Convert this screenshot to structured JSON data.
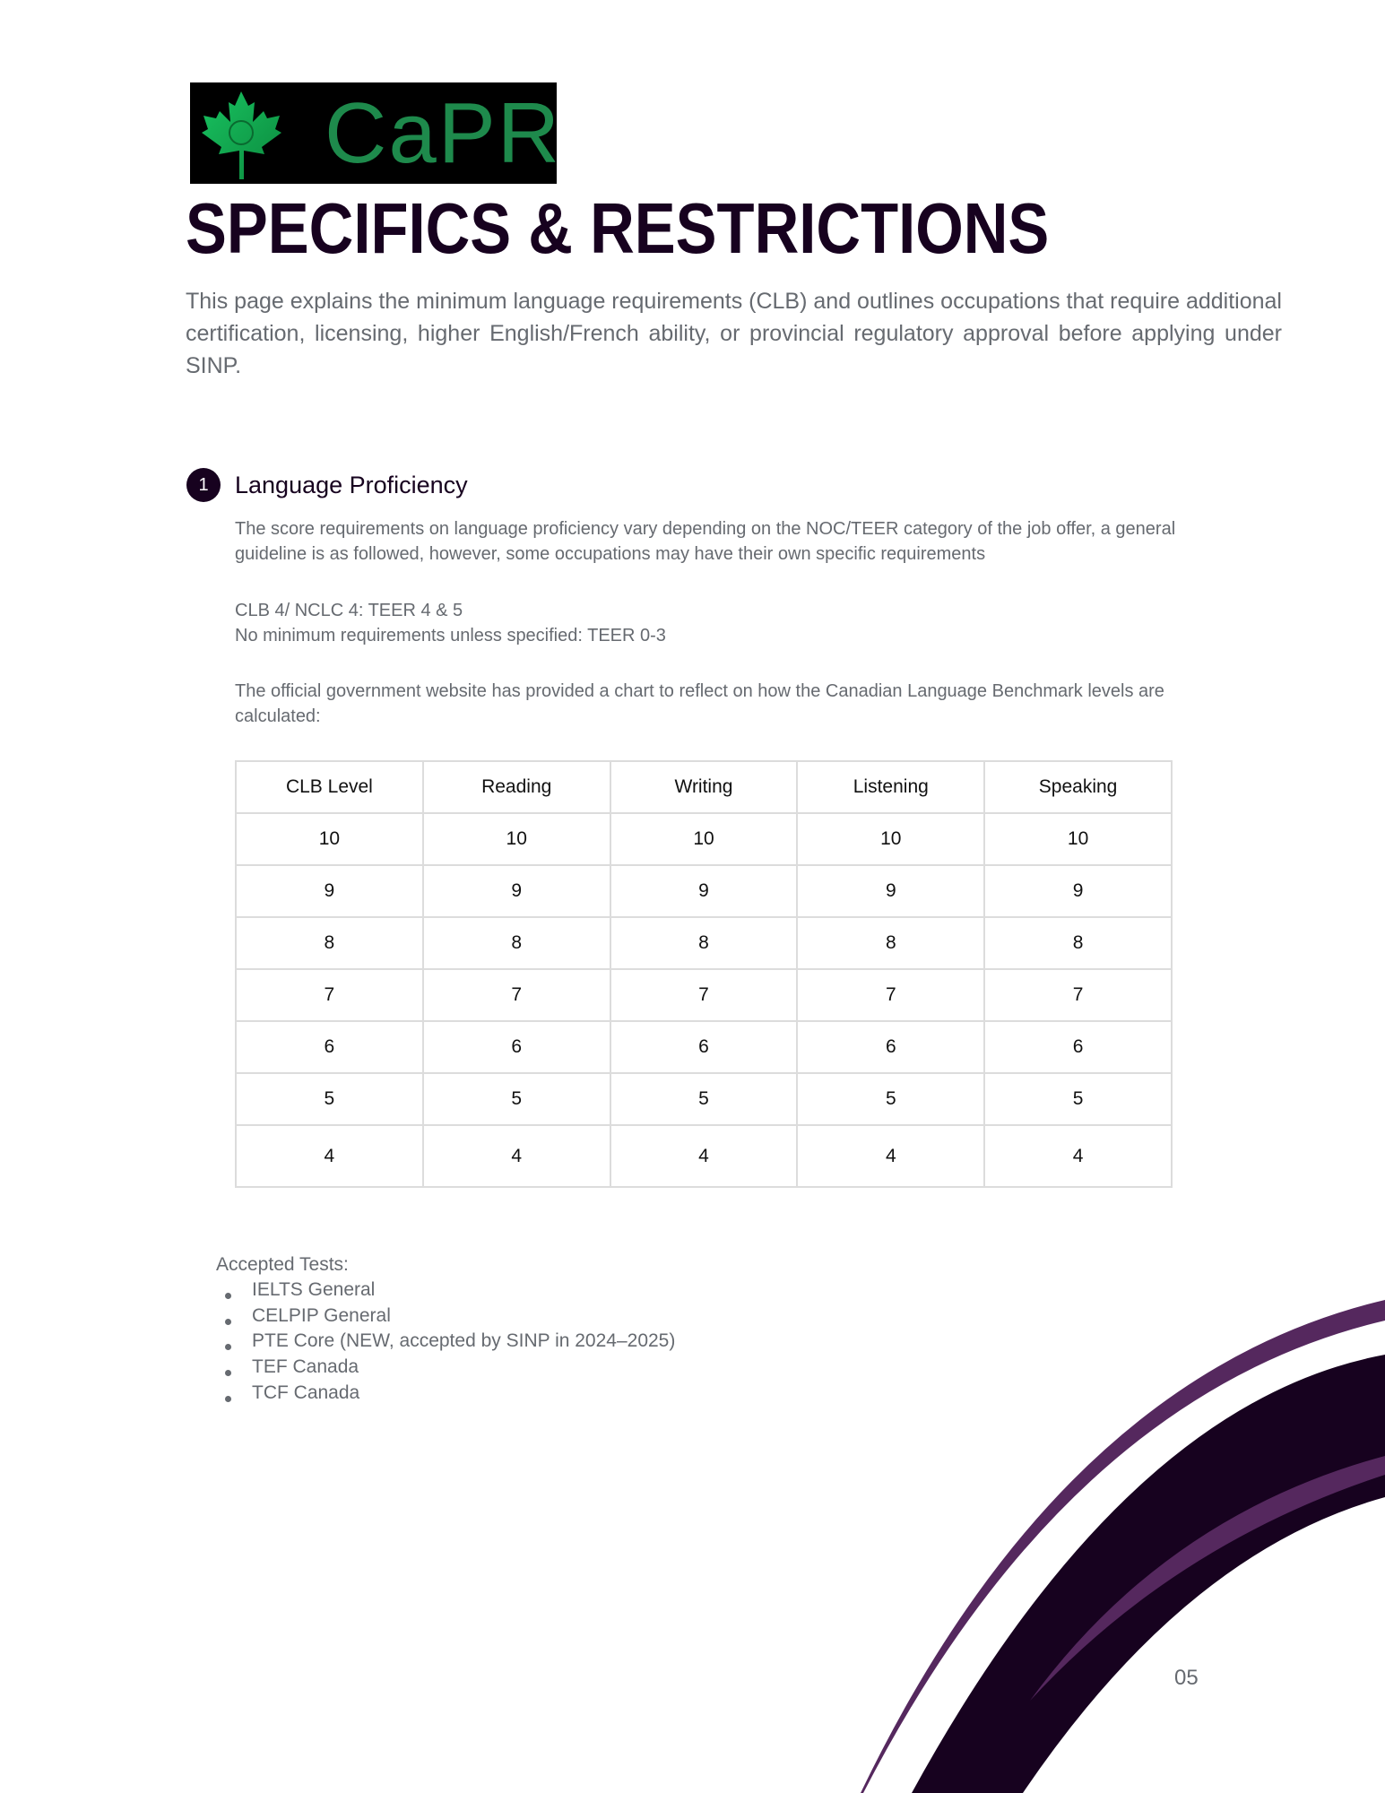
{
  "logo": {
    "text": "CaPR",
    "badge": "PR"
  },
  "page": {
    "title": "SPECIFICS & RESTRICTIONS",
    "intro": "This page explains the minimum language requirements (CLB) and outlines occupations that require additional certification, licensing, higher English/French ability, or provincial regulatory approval before applying under SINP.",
    "page_number": "05"
  },
  "section": {
    "number": "1",
    "title": "Language Proficiency",
    "para1": "The score requirements on language proficiency vary depending on the NOC/TEER category of the job offer, a general guideline is as followed, however, some occupations may have their own specific requirements",
    "line_clb4": "CLB 4/ NCLC 4: TEER 4 & 5",
    "line_nomin": "No minimum requirements unless specified: TEER 0-3",
    "para2": "The official government website has provided a chart to reflect on how the Canadian Language Benchmark levels are calculated:"
  },
  "table": {
    "headers": [
      "CLB Level",
      "Reading",
      "Writing",
      "Listening",
      "Speaking"
    ],
    "rows": [
      [
        "10",
        "10",
        "10",
        "10",
        "10"
      ],
      [
        "9",
        "9",
        "9",
        "9",
        "9"
      ],
      [
        "8",
        "8",
        "8",
        "8",
        "8"
      ],
      [
        "7",
        "7",
        "7",
        "7",
        "7"
      ],
      [
        "6",
        "6",
        "6",
        "6",
        "6"
      ],
      [
        "5",
        "5",
        "5",
        "5",
        "5"
      ],
      [
        "4",
        "4",
        "4",
        "4",
        "4"
      ]
    ]
  },
  "tests": {
    "label": "Accepted Tests:",
    "items": [
      "IELTS General",
      "CELPIP General",
      "PTE Core (NEW, accepted by SINP in 2024–2025)",
      "TEF Canada",
      "TCF Canada"
    ]
  },
  "colors": {
    "dark": "#17021f",
    "purple": "#55285e",
    "logo_green": "#1e8a4c",
    "text_gray": "#666a70"
  }
}
